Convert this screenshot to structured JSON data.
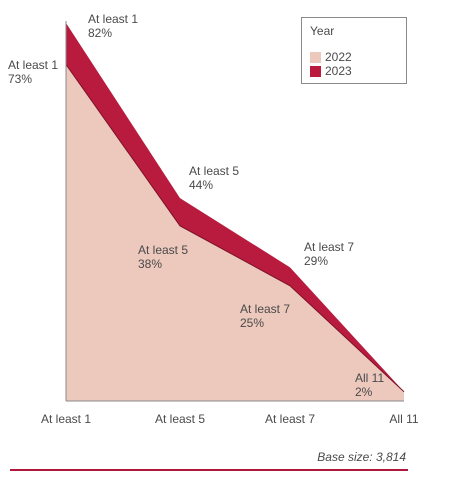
{
  "chart_data": {
    "type": "area",
    "categories": [
      "At least 1",
      "At least 5",
      "At least 7",
      "All 11"
    ],
    "series": [
      {
        "name": "2022",
        "values": [
          73,
          38,
          25,
          2
        ],
        "color": "#ecc8bd",
        "point_labels": [
          [
            "At least 1",
            "73%"
          ],
          [
            "At least 5",
            "38%"
          ],
          [
            "At least 7",
            "25%"
          ],
          [
            "All 11",
            "2%"
          ]
        ]
      },
      {
        "name": "2023",
        "values": [
          82,
          44,
          29,
          2
        ],
        "color": "#b81b3e",
        "point_labels": [
          [
            "At least 1",
            "82%"
          ],
          [
            "At least 5",
            "44%"
          ],
          [
            "At least 7",
            "29%"
          ]
        ]
      }
    ],
    "ylim": [
      0,
      82
    ],
    "legend": {
      "title": "Year",
      "position": "top-right"
    },
    "grid": false
  },
  "footer": {
    "base_size": "Base size: 3,814"
  },
  "colors": {
    "axis": "#8a8a8a",
    "text": "#4a4a4a",
    "accent_rule": "#b0173a"
  }
}
